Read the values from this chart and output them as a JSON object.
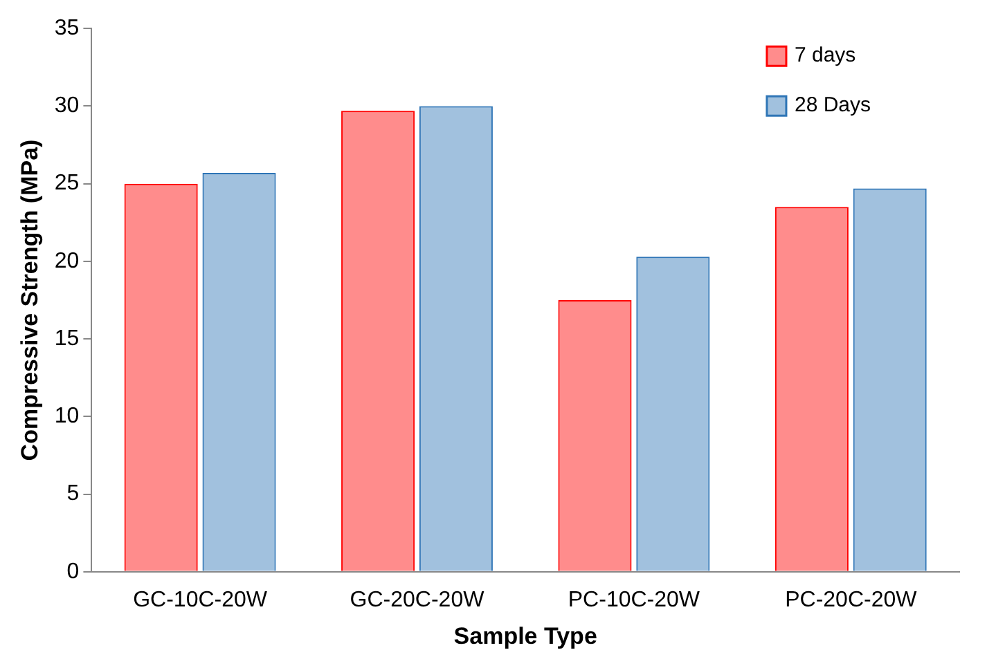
{
  "chart_data": {
    "type": "bar",
    "xlabel": "Sample Type",
    "ylabel": "Compressive Strength (MPa)",
    "categories": [
      "GC-10C-20W",
      "GC-20C-20W",
      "PC-10C-20W",
      "PC-20C-20W"
    ],
    "series": [
      {
        "name": "7 days",
        "color": "#ff0000",
        "values": [
          25.0,
          29.7,
          17.5,
          23.5
        ]
      },
      {
        "name": "28 Days",
        "color": "#2e75b6",
        "values": [
          25.7,
          30.0,
          20.3,
          24.7
        ]
      }
    ],
    "ylim": [
      0,
      35
    ],
    "yticks": [
      0,
      5,
      10,
      15,
      20,
      25,
      30,
      35
    ],
    "grid": false,
    "legend": "top right"
  }
}
